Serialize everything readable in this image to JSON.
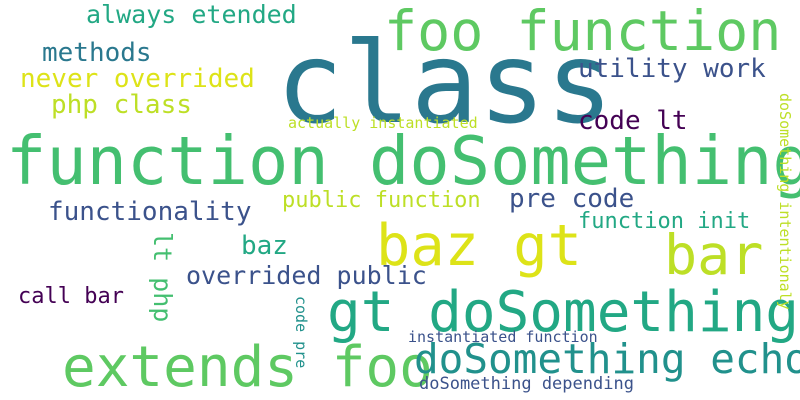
{
  "palette": {
    "dark_purple": "#440154",
    "indigo": "#3b528b",
    "blue": "#31688e",
    "teal": "#2a788e",
    "teal_green": "#21918c",
    "green": "#22a884",
    "light_green": "#44bf70",
    "lime": "#7ad151",
    "yellow_green": "#bddf26",
    "yellow": "#dde318"
  },
  "words": [
    {
      "text": "class",
      "color": "#2a788e"
    },
    {
      "text": "function doSomething",
      "color": "#44bf70"
    },
    {
      "text": "foo function",
      "color": "#5ec962"
    },
    {
      "text": "extends foo",
      "color": "#5ec962"
    },
    {
      "text": "gt doSomething",
      "color": "#22a884"
    },
    {
      "text": "baz gt",
      "color": "#dde318"
    },
    {
      "text": "bar",
      "color": "#bddf26"
    },
    {
      "text": "doSomething echo",
      "color": "#21918c"
    },
    {
      "text": "always etended",
      "color": "#22a884"
    },
    {
      "text": "methods",
      "color": "#2a788e"
    },
    {
      "text": "never overrided",
      "color": "#dde318"
    },
    {
      "text": "php class",
      "color": "#bddf26"
    },
    {
      "text": "utility work",
      "color": "#3b528b"
    },
    {
      "text": "code lt",
      "color": "#440154"
    },
    {
      "text": "actually instantiated",
      "color": "#bddf26"
    },
    {
      "text": "public function",
      "color": "#bddf26"
    },
    {
      "text": "pre code",
      "color": "#3b528b"
    },
    {
      "text": "functionality",
      "color": "#3b528b"
    },
    {
      "text": "function init",
      "color": "#22a884"
    },
    {
      "text": "baz",
      "color": "#22a884"
    },
    {
      "text": "lt php",
      "color": "#44bf70"
    },
    {
      "text": "overrided public",
      "color": "#3b528b"
    },
    {
      "text": "call bar",
      "color": "#440154"
    },
    {
      "text": "code pre",
      "color": "#21918c"
    },
    {
      "text": "instantiated function",
      "color": "#3b528b"
    },
    {
      "text": "doSomething depending",
      "color": "#3b528b"
    },
    {
      "text": "doSomething intentionaly",
      "color": "#bddf26"
    }
  ]
}
